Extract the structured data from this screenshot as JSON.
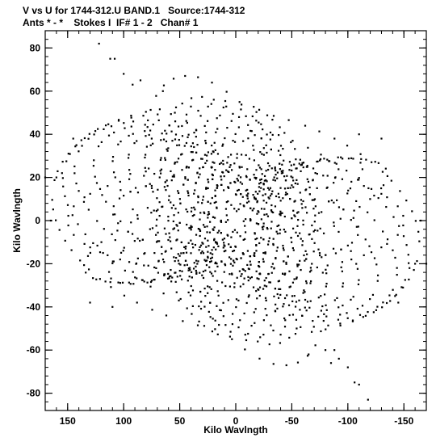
{
  "header": {
    "line1": "V vs U for 1744-312.U BAND.1   Source:1744-312",
    "line2": "Ants * - *    Stokes I  IF# 1 - 2   Chan# 1"
  },
  "chart_data": {
    "type": "scatter",
    "xlabel": "Kilo Wavlngth",
    "ylabel": "Kilo Wavlngth",
    "xlim": [
      170,
      -170
    ],
    "ylim": [
      -88,
      88
    ],
    "x_ticks": [
      150,
      100,
      50,
      0,
      -50,
      -100,
      -150
    ],
    "y_ticks": [
      80,
      60,
      40,
      20,
      0,
      -20,
      -40,
      -60,
      -80
    ],
    "x_tick_labels": [
      "150",
      "100",
      "50",
      "0",
      "-50",
      "-100",
      "-150"
    ],
    "y_tick_labels": [
      "80",
      "60",
      "40",
      "20",
      "0",
      "-20",
      "-40",
      "-60",
      "-80"
    ],
    "x_minor_step": 10,
    "y_minor_step": 4,
    "grid": false,
    "marker_color": "#000000",
    "tracks": [
      {
        "rx": 165,
        "ry": 83,
        "ang": 8,
        "sA": -170,
        "sB": 170,
        "n": 34
      },
      {
        "rx": 158,
        "ry": 72,
        "ang": 14,
        "sA": -170,
        "sB": 170,
        "n": 34
      },
      {
        "rx": 150,
        "ry": 62,
        "ang": 18,
        "sA": -170,
        "sB": 170,
        "n": 32
      },
      {
        "rx": 135,
        "ry": 55,
        "ang": 22,
        "sA": -170,
        "sB": 170,
        "n": 30
      },
      {
        "rx": 120,
        "ry": 47,
        "ang": 26,
        "sA": -170,
        "sB": 170,
        "n": 28
      },
      {
        "rx": 108,
        "ry": 42,
        "ang": 30,
        "sA": -170,
        "sB": 170,
        "n": 26
      },
      {
        "rx": 95,
        "ry": 36,
        "ang": 34,
        "sA": -170,
        "sB": 170,
        "n": 26
      },
      {
        "rx": 82,
        "ry": 32,
        "ang": 38,
        "sA": -170,
        "sB": 170,
        "n": 24
      },
      {
        "rx": 70,
        "ry": 28,
        "ang": 42,
        "sA": -170,
        "sB": 170,
        "n": 22
      },
      {
        "rx": 60,
        "ry": 24,
        "ang": 46,
        "sA": -170,
        "sB": 170,
        "n": 22
      },
      {
        "rx": 50,
        "ry": 20,
        "ang": 50,
        "sA": -170,
        "sB": 170,
        "n": 20
      },
      {
        "rx": 40,
        "ry": 16,
        "ang": 55,
        "sA": -170,
        "sB": 170,
        "n": 18
      },
      {
        "rx": 30,
        "ry": 12,
        "ang": 60,
        "sA": -170,
        "sB": 170,
        "n": 16
      },
      {
        "rx": 140,
        "ry": 30,
        "ang": -15,
        "sA": -160,
        "sB": 160,
        "n": 30
      },
      {
        "rx": 120,
        "ry": 25,
        "ang": -20,
        "sA": -160,
        "sB": 160,
        "n": 28
      },
      {
        "rx": 100,
        "ry": 20,
        "ang": -24,
        "sA": -160,
        "sB": 160,
        "n": 26
      },
      {
        "rx": 80,
        "ry": 16,
        "ang": -28,
        "sA": -160,
        "sB": 160,
        "n": 24
      },
      {
        "rx": 60,
        "ry": 12,
        "ang": -32,
        "sA": -160,
        "sB": 160,
        "n": 20
      },
      {
        "rx": 40,
        "ry": 8,
        "ang": -36,
        "sA": -160,
        "sB": 160,
        "n": 16
      },
      {
        "rx": 25,
        "ry": 5,
        "ang": -40,
        "sA": -160,
        "sB": 160,
        "n": 12
      },
      {
        "rx": 90,
        "ry": 70,
        "ang": 80,
        "sA": -150,
        "sB": 150,
        "n": 30
      },
      {
        "rx": 80,
        "ry": 60,
        "ang": 84,
        "sA": -150,
        "sB": 150,
        "n": 28
      },
      {
        "rx": 70,
        "ry": 50,
        "ang": 88,
        "sA": -150,
        "sB": 150,
        "n": 26
      },
      {
        "rx": 60,
        "ry": 40,
        "ang": 92,
        "sA": -150,
        "sB": 150,
        "n": 24
      },
      {
        "rx": 50,
        "ry": 32,
        "ang": 96,
        "sA": -150,
        "sB": 150,
        "n": 22
      },
      {
        "rx": 40,
        "ry": 25,
        "ang": 100,
        "sA": -150,
        "sB": 150,
        "n": 20
      },
      {
        "rx": 120,
        "ry": 60,
        "ang": 60,
        "sA": -120,
        "sB": 120,
        "n": 26
      },
      {
        "rx": 100,
        "ry": 50,
        "ang": 64,
        "sA": -120,
        "sB": 120,
        "n": 24
      },
      {
        "rx": 150,
        "ry": 40,
        "ang": 0,
        "sA": -150,
        "sB": 150,
        "n": 30
      },
      {
        "rx": 110,
        "ry": 30,
        "ang": 4,
        "sA": -150,
        "sB": 150,
        "n": 26
      }
    ],
    "extra_points": [
      {
        "x": 122,
        "y": 82
      },
      {
        "x": 112,
        "y": 75
      },
      {
        "x": 108,
        "y": 75
      },
      {
        "x": 100,
        "y": 68
      },
      {
        "x": 92,
        "y": 63
      },
      {
        "x": 75,
        "y": 38
      },
      {
        "x": 65,
        "y": 60
      },
      {
        "x": 85,
        "y": 65
      },
      {
        "x": -118,
        "y": -83
      },
      {
        "x": -110,
        "y": -76
      },
      {
        "x": -106,
        "y": -75
      },
      {
        "x": -100,
        "y": -68
      },
      {
        "x": -92,
        "y": -64
      },
      {
        "x": -85,
        "y": -66
      },
      {
        "x": -80,
        "y": -60
      },
      {
        "x": -65,
        "y": -62
      },
      {
        "x": -88,
        "y": -60
      },
      {
        "x": 165,
        "y": 0
      },
      {
        "x": -165,
        "y": 0
      },
      {
        "x": 160,
        "y": 20
      },
      {
        "x": -160,
        "y": -20
      },
      {
        "x": 155,
        "y": 22
      },
      {
        "x": -155,
        "y": -22
      },
      {
        "x": 170,
        "y": 20
      },
      {
        "x": -170,
        "y": -20
      },
      {
        "x": 145,
        "y": 38
      },
      {
        "x": -145,
        "y": -38
      },
      {
        "x": -130,
        "y": 38
      },
      {
        "x": 130,
        "y": -38
      },
      {
        "x": -110,
        "y": 40
      },
      {
        "x": 110,
        "y": -40
      }
    ]
  }
}
